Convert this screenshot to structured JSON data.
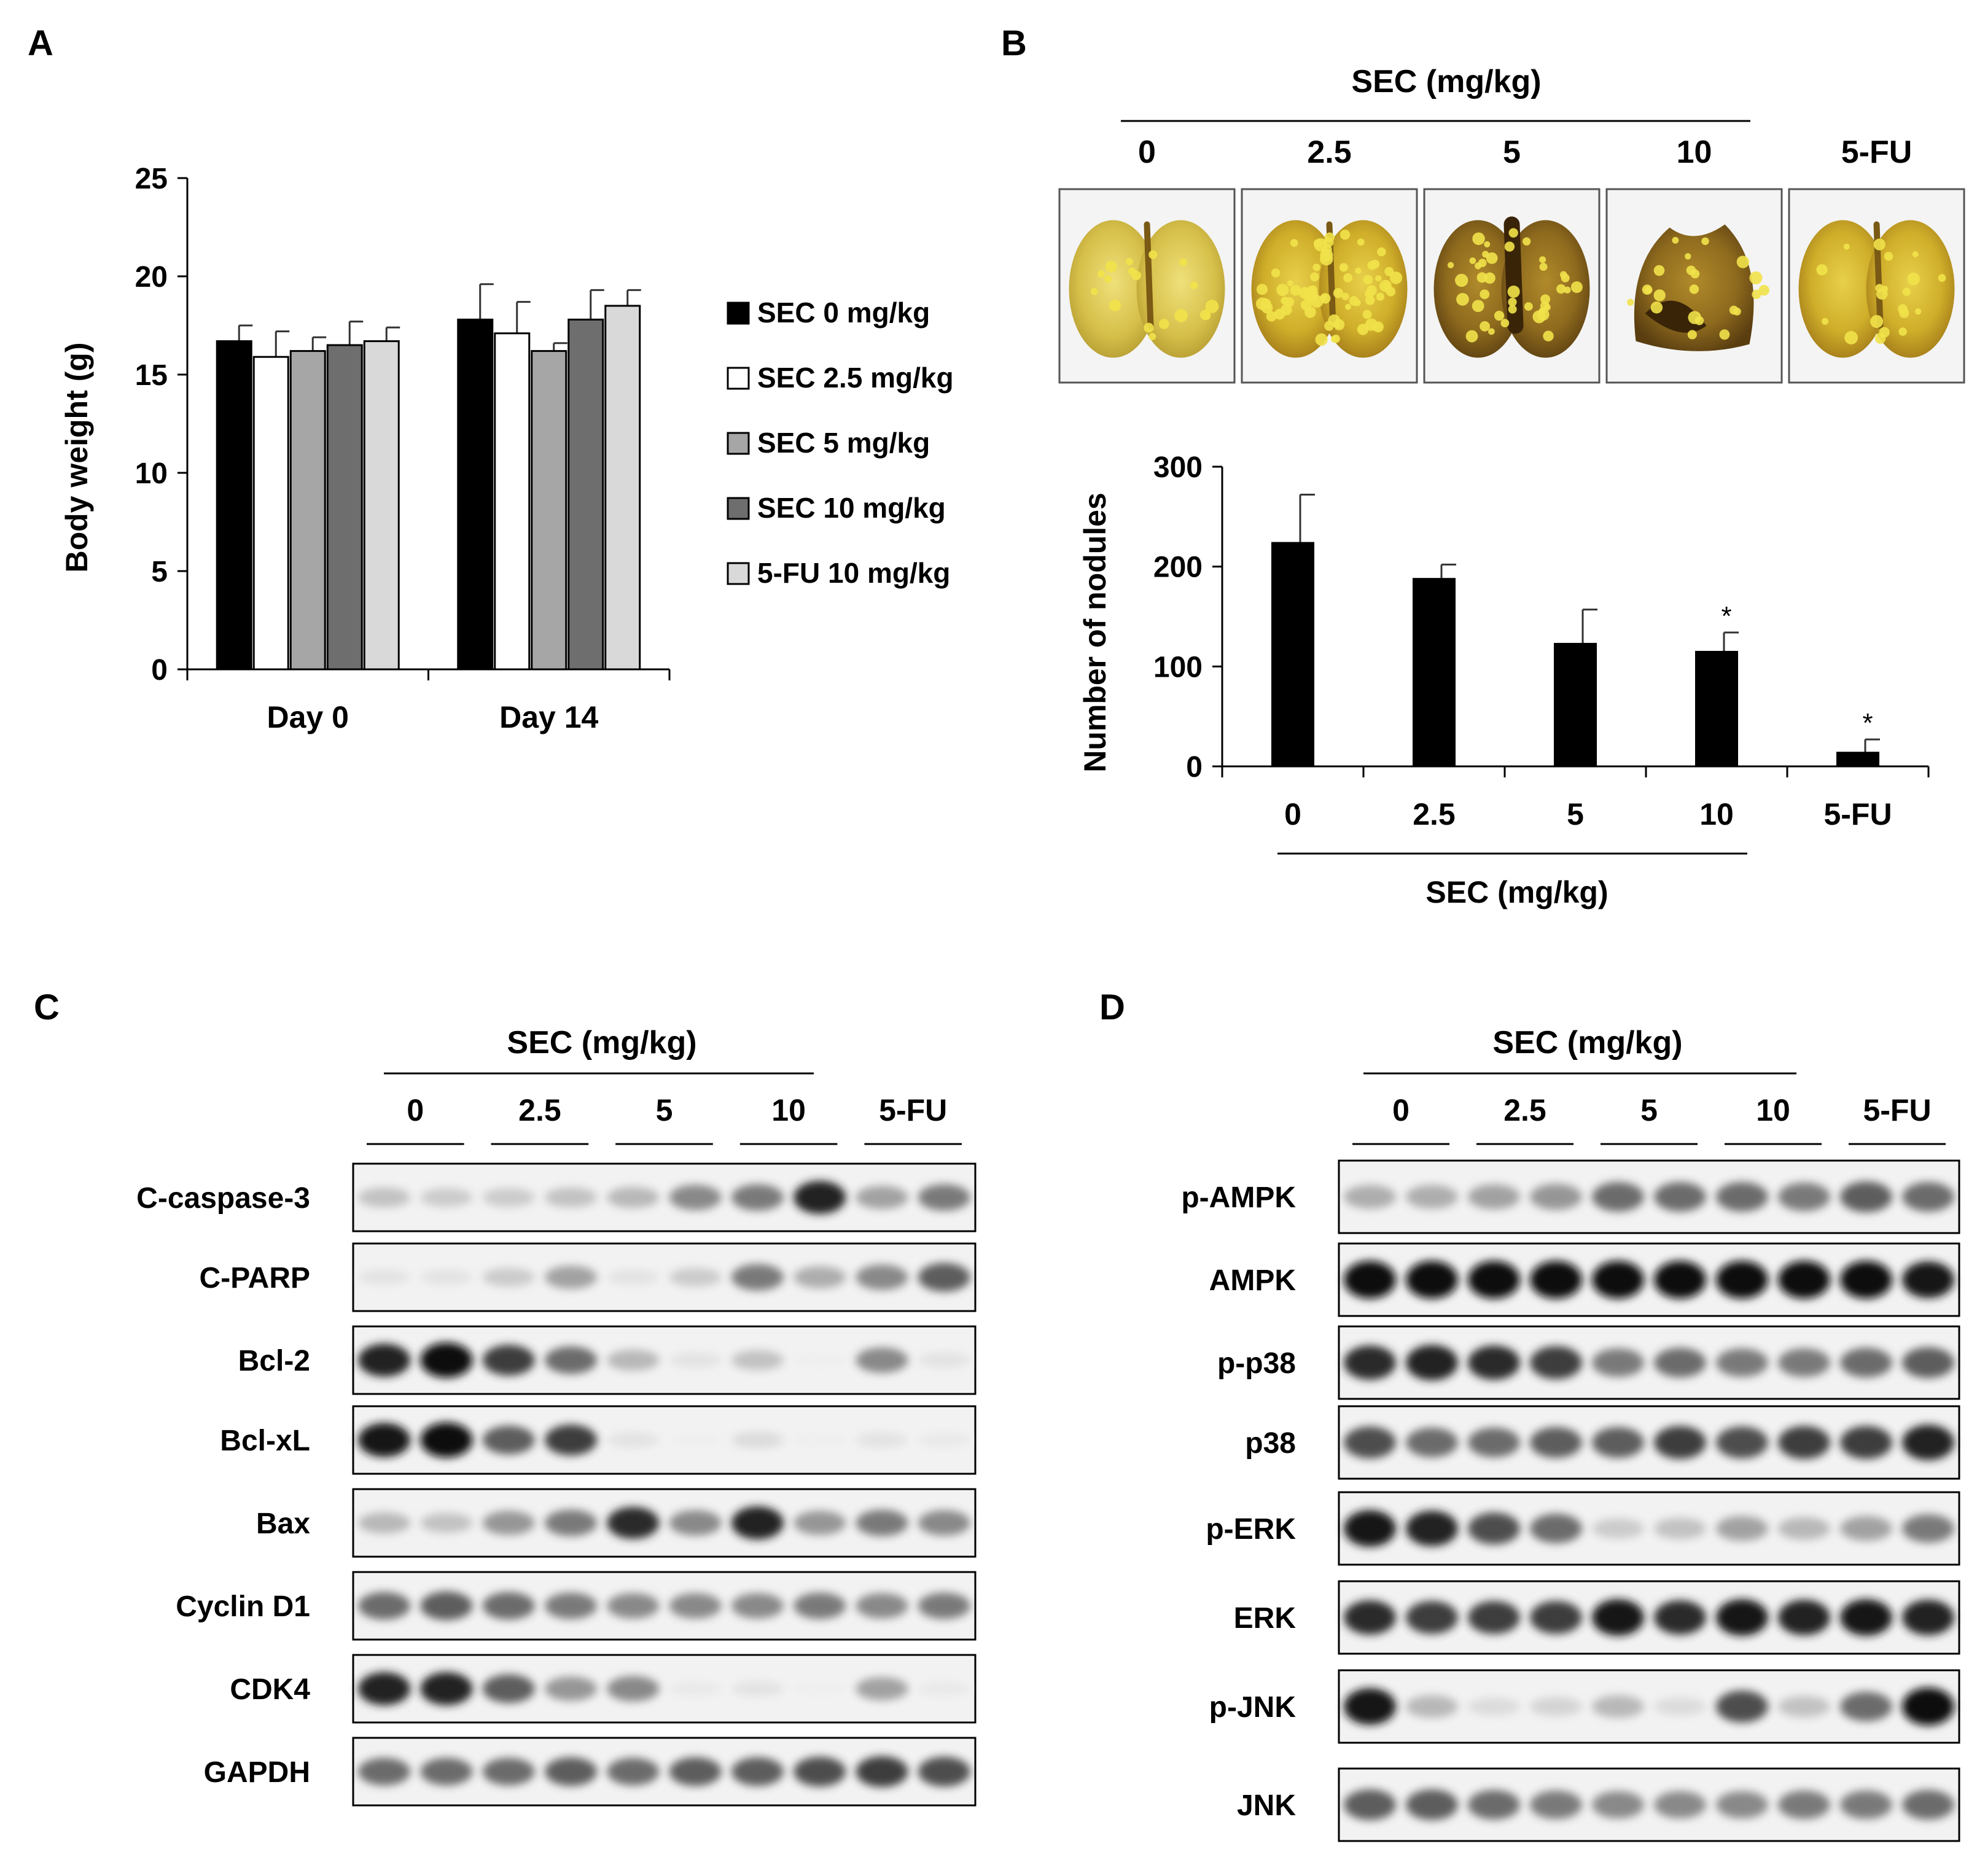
{
  "panels": {
    "A": {
      "letter": "A",
      "chart_data": {
        "type": "bar",
        "ylabel": "Body weight (g)",
        "xlabel": "",
        "ylim": [
          0,
          25
        ],
        "yticks": [
          "0",
          "5",
          "10",
          "15",
          "20",
          "25"
        ],
        "categories": [
          "Day 0",
          "Day 14"
        ],
        "legend_position": "right",
        "series": [
          {
            "name": "SEC 0 mg/kg",
            "color": "#000000",
            "values": [
              16.7,
              17.8
            ],
            "errors": [
              0.8,
              1.8
            ]
          },
          {
            "name": "SEC 2.5 mg/kg",
            "color": "#ffffff",
            "values": [
              15.9,
              17.1
            ],
            "errors": [
              1.3,
              1.6
            ]
          },
          {
            "name": "SEC 5 mg/kg",
            "color": "#a6a6a6",
            "values": [
              16.2,
              16.2
            ],
            "errors": [
              0.7,
              0.4
            ]
          },
          {
            "name": "SEC 10 mg/kg",
            "color": "#6e6e6e",
            "values": [
              16.5,
              17.8
            ],
            "errors": [
              1.2,
              1.5
            ]
          },
          {
            "name": "5-FU 10 mg/kg",
            "color": "#d9d9d9",
            "values": [
              16.7,
              18.5
            ],
            "errors": [
              0.7,
              0.8
            ]
          }
        ]
      }
    },
    "B": {
      "letter": "B",
      "header": "SEC (mg/kg)",
      "photo_labels": [
        "0",
        "2.5",
        "5",
        "10",
        "5-FU"
      ],
      "photo_names": [
        "lung-photo-0",
        "lung-photo-2-5",
        "lung-photo-5",
        "lung-photo-10",
        "lung-photo-5fu"
      ],
      "chart_data": {
        "type": "bar",
        "ylabel": "Number of nodules",
        "xlabel": "SEC (mg/kg)",
        "ylim": [
          0,
          300
        ],
        "yticks": [
          "0",
          "100",
          "200",
          "300"
        ],
        "categories": [
          "0",
          "2.5",
          "5",
          "10",
          "5-FU"
        ],
        "values": [
          224,
          188,
          123,
          115,
          14
        ],
        "errors": [
          48,
          14,
          34,
          19,
          13
        ],
        "significance": [
          "",
          "",
          "",
          "*",
          "*"
        ],
        "color": "#000000"
      }
    },
    "C": {
      "letter": "C",
      "header": "SEC (mg/kg)",
      "groups": [
        "0",
        "2.5",
        "5",
        "10",
        "5-FU"
      ],
      "blots": [
        {
          "label": "C-caspase-3",
          "intensity": [
            0.3,
            0.25,
            0.25,
            0.3,
            0.35,
            0.55,
            0.6,
            0.9,
            0.45,
            0.6
          ]
        },
        {
          "label": "C-PARP",
          "intensity": [
            0.1,
            0.1,
            0.25,
            0.45,
            0.1,
            0.25,
            0.6,
            0.4,
            0.55,
            0.7
          ]
        },
        {
          "label": "Bcl-2",
          "intensity": [
            0.9,
            1.0,
            0.8,
            0.65,
            0.35,
            0.1,
            0.3,
            0.0,
            0.55,
            0.1
          ]
        },
        {
          "label": "Bcl-xL",
          "intensity": [
            0.95,
            1.0,
            0.7,
            0.8,
            0.1,
            0.0,
            0.15,
            0.0,
            0.1,
            0.05
          ]
        },
        {
          "label": "Bax",
          "intensity": [
            0.35,
            0.3,
            0.5,
            0.6,
            0.85,
            0.55,
            0.9,
            0.5,
            0.6,
            0.55
          ]
        },
        {
          "label": "Cyclin D1",
          "intensity": [
            0.65,
            0.7,
            0.65,
            0.6,
            0.55,
            0.55,
            0.55,
            0.6,
            0.55,
            0.6
          ]
        },
        {
          "label": "CDK4",
          "intensity": [
            0.9,
            0.9,
            0.7,
            0.5,
            0.55,
            0.05,
            0.1,
            0.0,
            0.45,
            0.05
          ]
        },
        {
          "label": "GAPDH",
          "intensity": [
            0.65,
            0.65,
            0.65,
            0.7,
            0.65,
            0.7,
            0.7,
            0.75,
            0.8,
            0.75
          ]
        }
      ]
    },
    "D": {
      "letter": "D",
      "header": "SEC (mg/kg)",
      "groups": [
        "0",
        "2.5",
        "5",
        "10",
        "5-FU"
      ],
      "blots": [
        {
          "label": "p-AMPK",
          "intensity": [
            0.4,
            0.4,
            0.45,
            0.5,
            0.65,
            0.65,
            0.65,
            0.6,
            0.7,
            0.65
          ]
        },
        {
          "label": "AMPK",
          "intensity": [
            1.0,
            1.0,
            1.0,
            1.0,
            1.0,
            1.0,
            1.0,
            1.0,
            1.0,
            0.95
          ]
        },
        {
          "label": "p-p38",
          "intensity": [
            0.85,
            0.9,
            0.85,
            0.8,
            0.6,
            0.65,
            0.6,
            0.6,
            0.65,
            0.7
          ]
        },
        {
          "label": "p38",
          "intensity": [
            0.75,
            0.65,
            0.65,
            0.7,
            0.7,
            0.8,
            0.75,
            0.8,
            0.8,
            0.9
          ]
        },
        {
          "label": "p-ERK",
          "intensity": [
            0.95,
            0.9,
            0.75,
            0.65,
            0.25,
            0.3,
            0.45,
            0.35,
            0.45,
            0.6
          ]
        },
        {
          "label": "ERK",
          "intensity": [
            0.85,
            0.8,
            0.8,
            0.8,
            0.95,
            0.85,
            0.95,
            0.9,
            0.95,
            0.9
          ]
        },
        {
          "label": "p-JNK",
          "intensity": [
            0.95,
            0.35,
            0.15,
            0.2,
            0.35,
            0.15,
            0.75,
            0.3,
            0.65,
            1.0
          ]
        },
        {
          "label": "JNK",
          "intensity": [
            0.7,
            0.7,
            0.65,
            0.6,
            0.55,
            0.55,
            0.55,
            0.6,
            0.6,
            0.65
          ]
        }
      ]
    }
  }
}
